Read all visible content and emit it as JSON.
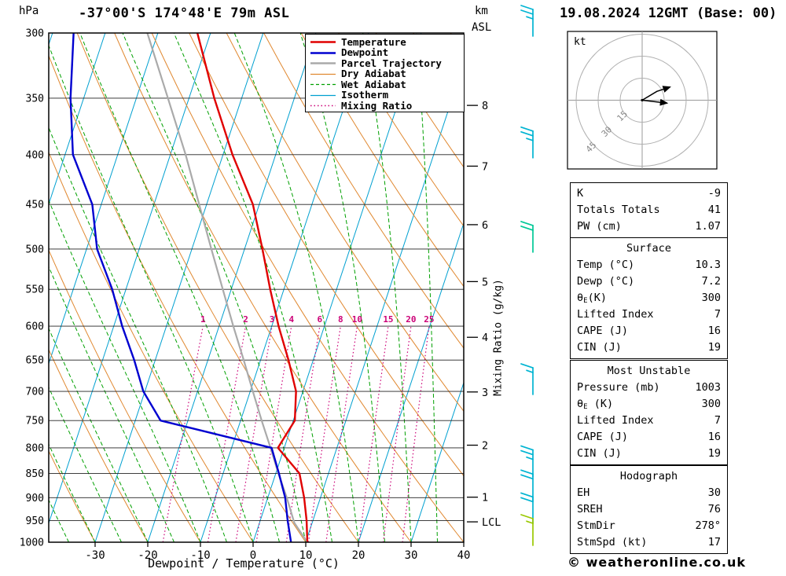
{
  "header": {
    "left_unit": "hPa",
    "station": "-37°00'S 174°48'E 79m ASL",
    "km": "km",
    "asl": "ASL",
    "datetime": "19.08.2024 12GMT (Base: 00)"
  },
  "axes": {
    "pressure_ticks": [
      300,
      350,
      400,
      450,
      500,
      550,
      600,
      650,
      700,
      750,
      800,
      850,
      900,
      950,
      1000
    ],
    "temp_ticks": [
      -30,
      -20,
      -10,
      0,
      10,
      20,
      30,
      40
    ],
    "x_label": "Dewpoint / Temperature (°C)",
    "mixing_ratio_axis_label": "Mixing Ratio (g/kg)",
    "km_ticks": [
      {
        "label": "8",
        "pressure": 356
      },
      {
        "label": "7",
        "pressure": 411
      },
      {
        "label": "6",
        "pressure": 472
      },
      {
        "label": "5",
        "pressure": 540
      },
      {
        "label": "4",
        "pressure": 616
      },
      {
        "label": "3",
        "pressure": 701
      },
      {
        "label": "2",
        "pressure": 795
      },
      {
        "label": "1",
        "pressure": 899
      },
      {
        "label": "LCL",
        "pressure": 953
      }
    ]
  },
  "legend": {
    "items": [
      {
        "label": "Temperature",
        "color": "#e00000",
        "dash": "",
        "width": 2.5
      },
      {
        "label": "Dewpoint",
        "color": "#0000d0",
        "dash": "",
        "width": 2.5
      },
      {
        "label": "Parcel Trajectory",
        "color": "#aaaaaa",
        "dash": "",
        "width": 2.5
      },
      {
        "label": "Dry Adiabat",
        "color": "#e08830",
        "dash": "",
        "width": 1.2
      },
      {
        "label": "Wet Adiabat",
        "color": "#00a000",
        "dash": "4 3",
        "width": 1.2
      },
      {
        "label": "Isotherm",
        "color": "#00a0d0",
        "dash": "",
        "width": 1.2
      },
      {
        "label": "Mixing Ratio",
        "color": "#cc0077",
        "dash": "1.5 3",
        "width": 1.4
      }
    ]
  },
  "chart_data": {
    "type": "skew-t-log-p",
    "pressure_range_hPa": [
      300,
      1000
    ],
    "temp_axis_range_C": [
      -40,
      40
    ],
    "isotherm_step_C": 10,
    "mixing_ratio_lines_g_per_kg": [
      1,
      2,
      3,
      4,
      6,
      8,
      10,
      15,
      20,
      25
    ],
    "temperature_profile": {
      "pressure_hPa": [
        1000,
        950,
        900,
        850,
        800,
        750,
        700,
        650,
        600,
        550,
        500,
        450,
        400,
        350,
        300
      ],
      "temp_C": [
        10.3,
        8.8,
        6.9,
        4.5,
        -1.2,
        0.3,
        -1.3,
        -4.7,
        -8.7,
        -12.6,
        -16.6,
        -21.2,
        -28.2,
        -35.2,
        -42.5
      ]
    },
    "dewpoint_profile": {
      "pressure_hPa": [
        1000,
        950,
        900,
        850,
        800,
        750,
        700,
        650,
        600,
        550,
        500,
        450,
        400,
        350,
        300
      ],
      "temp_C": [
        7.2,
        5.2,
        3.3,
        0.6,
        -2.4,
        -25.2,
        -30.3,
        -34.0,
        -38.4,
        -42.6,
        -48.0,
        -51.7,
        -58.5,
        -62.5,
        -66.0
      ]
    },
    "parcel_profile": {
      "pressure_hPa": [
        1000,
        955,
        900,
        850,
        800,
        750,
        700,
        650,
        600,
        550,
        500,
        450,
        400,
        350,
        300
      ],
      "temp_C": [
        10.3,
        6.6,
        3.6,
        0.5,
        -2.6,
        -6.0,
        -9.5,
        -13.2,
        -17.3,
        -21.6,
        -26.3,
        -31.4,
        -37.1,
        -44.0,
        -52.0
      ]
    },
    "wind_barbs": [
      {
        "pressure_hPa": 300,
        "speed_kt": 25,
        "color": "#00b4d2"
      },
      {
        "pressure_hPa": 400,
        "speed_kt": 25,
        "color": "#00b4d2"
      },
      {
        "pressure_hPa": 500,
        "speed_kt": 20,
        "color": "#00c896"
      },
      {
        "pressure_hPa": 700,
        "speed_kt": 15,
        "color": "#00b4d2"
      },
      {
        "pressure_hPa": 850,
        "speed_kt": 25,
        "color": "#00b4d2"
      },
      {
        "pressure_hPa": 900,
        "speed_kt": 20,
        "color": "#00b4d2"
      },
      {
        "pressure_hPa": 950,
        "speed_kt": 20,
        "color": "#00b4d2"
      },
      {
        "pressure_hPa": 1000,
        "speed_kt": 15,
        "color": "#9ac800"
      }
    ]
  },
  "hodograph": {
    "title": "kt",
    "rings_kt": [
      15,
      30,
      45
    ],
    "trace_main": [
      [
        0,
        0
      ],
      [
        10,
        6
      ],
      [
        19,
        9
      ]
    ],
    "trace_branch": [
      [
        0,
        0
      ],
      [
        17,
        -2
      ]
    ]
  },
  "indices_table": {
    "rows": [
      [
        "K",
        "-9"
      ],
      [
        "Totals Totals",
        "41"
      ],
      [
        "PW (cm)",
        "1.07"
      ]
    ]
  },
  "surface_table": {
    "title": "Surface",
    "rows": [
      [
        "Temp (°C)",
        "10.3"
      ],
      [
        "Dewp (°C)",
        "7.2"
      ],
      [
        "θₑ(K)",
        "300"
      ],
      [
        "Lifted Index",
        "7"
      ],
      [
        "CAPE (J)",
        "16"
      ],
      [
        "CIN (J)",
        "19"
      ]
    ]
  },
  "most_unstable_table": {
    "title": "Most Unstable",
    "rows": [
      [
        "Pressure (mb)",
        "1003"
      ],
      [
        "θₑ (K)",
        "300"
      ],
      [
        "Lifted Index",
        "7"
      ],
      [
        "CAPE (J)",
        "16"
      ],
      [
        "CIN (J)",
        "19"
      ]
    ]
  },
  "hodograph_table": {
    "title": "Hodograph",
    "rows": [
      [
        "EH",
        "30"
      ],
      [
        "SREH",
        "76"
      ],
      [
        "StmDir",
        "278°"
      ],
      [
        "StmSpd (kt)",
        "17"
      ]
    ]
  },
  "footer": {
    "copyright": "© weatheronline.co.uk"
  }
}
